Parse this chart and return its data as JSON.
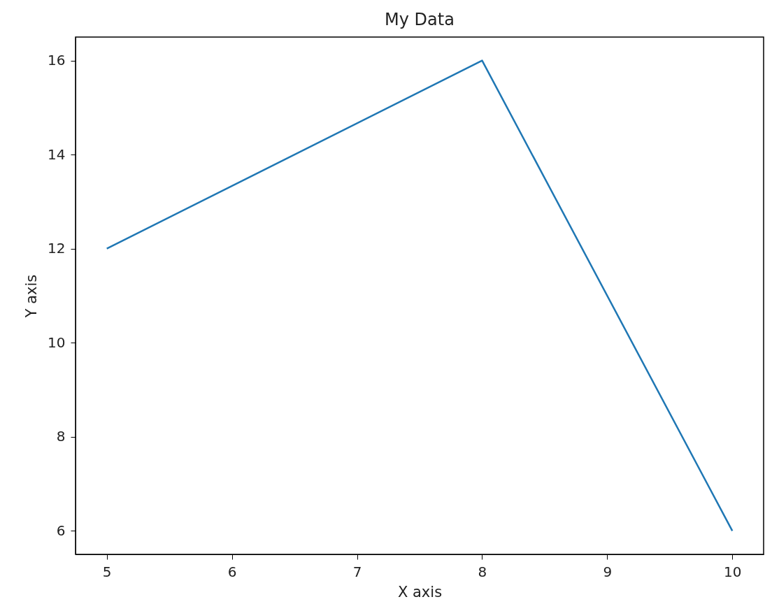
{
  "chart_data": {
    "type": "line",
    "title": "My Data",
    "xlabel": "X axis",
    "ylabel": "Y axis",
    "x": [
      5,
      8,
      10
    ],
    "series": [
      {
        "color": "#1f77b4",
        "values": [
          12,
          16,
          6
        ]
      }
    ],
    "xlim": [
      4.75,
      10.25
    ],
    "xticks": [
      5,
      6,
      7,
      8,
      9,
      10
    ],
    "ylim": [
      5.5,
      16.5
    ],
    "yticks": [
      6,
      8,
      10,
      12,
      14,
      16
    ],
    "grid": false
  }
}
